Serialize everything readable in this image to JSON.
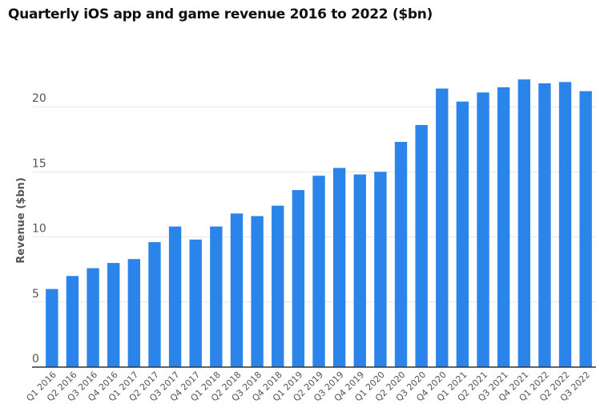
{
  "chart_data": {
    "type": "bar",
    "title": "Quarterly iOS app and game revenue 2016 to 2022 ($bn)",
    "xlabel": "",
    "ylabel": "Revenue ($bn)",
    "ylim": [
      0,
      25
    ],
    "yticks": [
      0,
      5,
      10,
      15,
      20
    ],
    "grid": true,
    "bar_color": "#2b84ea",
    "categories": [
      "Q1 2016",
      "Q2 2016",
      "Q3 2016",
      "Q4 2016",
      "Q1 2017",
      "Q2 2017",
      "Q3 2017",
      "Q4 2017",
      "Q1 2018",
      "Q2 2018",
      "Q3 2018",
      "Q4 2018",
      "Q1 2019",
      "Q2 2019",
      "Q3 2019",
      "Q4 2019",
      "Q1 2020",
      "Q2 2020",
      "Q3 2020",
      "Q4 2020",
      "Q1 2021",
      "Q2 2021",
      "Q3 2021",
      "Q4 2021",
      "Q1 2022",
      "Q2 2022",
      "Q3 2022"
    ],
    "values": [
      6.0,
      7.0,
      7.6,
      8.0,
      8.3,
      9.6,
      10.8,
      9.8,
      10.8,
      11.8,
      11.6,
      12.4,
      13.6,
      14.7,
      15.3,
      14.8,
      15.0,
      17.3,
      18.6,
      21.4,
      20.4,
      21.1,
      21.5,
      22.1,
      21.8,
      21.9,
      21.2
    ]
  }
}
